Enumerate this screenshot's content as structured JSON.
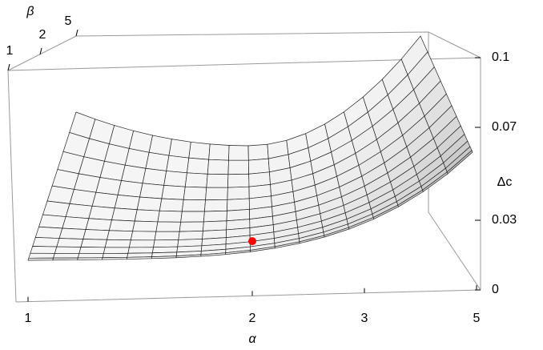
{
  "chart_data": {
    "type": "surface3d",
    "x_label": "α",
    "y_label": "β",
    "z_label": "Δc",
    "xticks": [
      1,
      2,
      3,
      5
    ],
    "yticks": [
      1,
      2,
      5
    ],
    "zlim": [
      0,
      0.1
    ],
    "zticks": [
      0,
      0.03,
      0.07,
      0.1
    ],
    "point": {
      "x": 2,
      "z": 0.021,
      "color": "#ff0000"
    },
    "surface_color": "#f2f2f2"
  }
}
